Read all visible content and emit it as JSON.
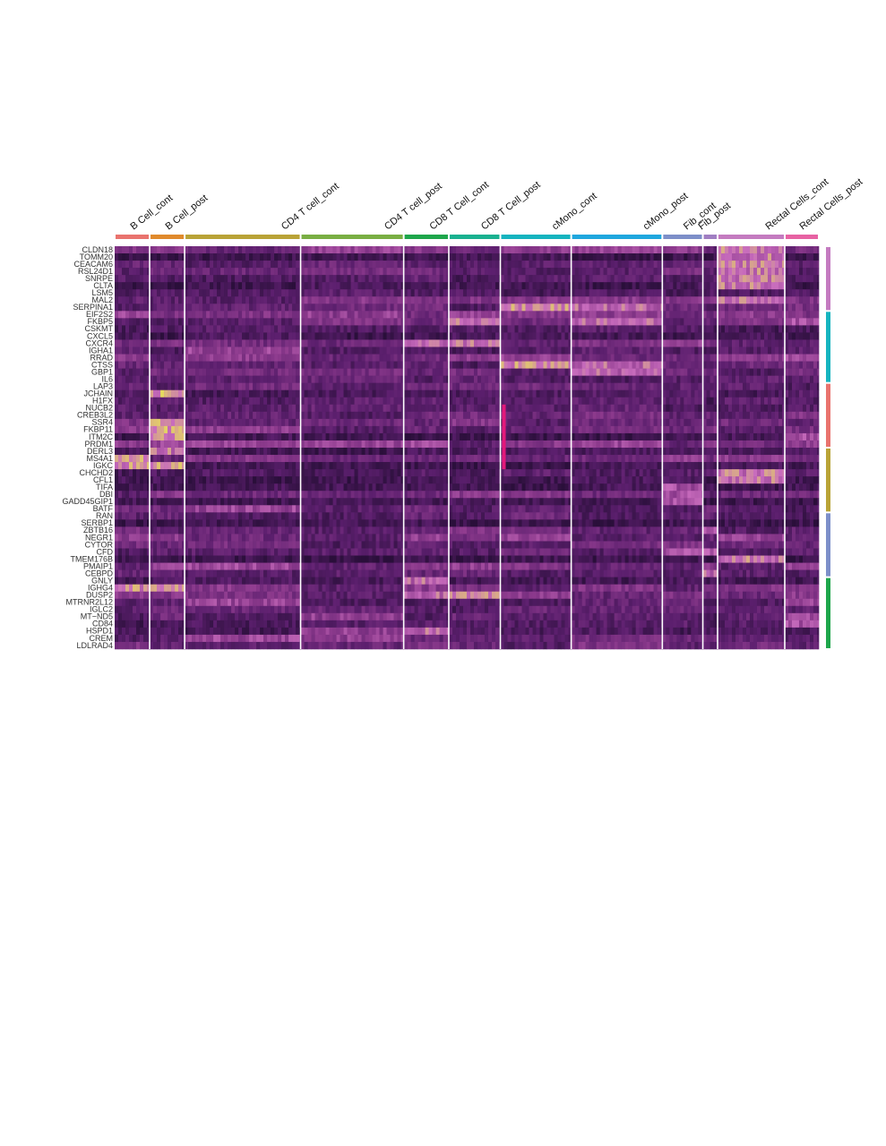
{
  "chart_data": {
    "type": "heatmap",
    "title": "",
    "xlabel": "",
    "ylabel": "",
    "groups": [
      {
        "name": "B Cell_cont",
        "cells": 38,
        "color": "#e9736e"
      },
      {
        "name": "B Cell_post",
        "cells": 38,
        "color": "#e08a2c"
      },
      {
        "name": "CD4 T cell_cont",
        "cells": 126,
        "color": "#b9a337"
      },
      {
        "name": "CD4 T cell_post",
        "cells": 112,
        "color": "#79ae43"
      },
      {
        "name": "CD8 T Cell_cont",
        "cells": 49,
        "color": "#1ea64b"
      },
      {
        "name": "CD8 T Cell_post",
        "cells": 56,
        "color": "#1ab190"
      },
      {
        "name": "cMono_cont",
        "cells": 77,
        "color": "#16b4bf"
      },
      {
        "name": "cMono_post",
        "cells": 99,
        "color": "#1fa7de"
      },
      {
        "name": "Fib_cont",
        "cells": 44,
        "color": "#7d8fc9"
      },
      {
        "name": "Fib_post",
        "cells": 16,
        "color": "#a07ec2"
      },
      {
        "name": "Rectal Cells_cont",
        "cells": 73,
        "color": "#c47bc0"
      },
      {
        "name": "Rectal Cells_post",
        "cells": 37,
        "color": "#e762a3"
      }
    ],
    "genes": [
      "CLDN18",
      "TOMM20",
      "CEACAM6",
      "RSL24D1",
      "SNRPE",
      "CLTA",
      "LSM5",
      "MAL2",
      "SERPINA1",
      "EIF2S2",
      "FKBP5",
      "CSKMT",
      "CXCL5",
      "CXCR4",
      "IGHA1",
      "RRAD",
      "CTSS",
      "GBP1",
      "IL6",
      "LAP3",
      "JCHAIN",
      "H1FX",
      "NUCB2",
      "CREB3L2",
      "SSR4",
      "FKBP11",
      "ITM2C",
      "PRDM1",
      "DERL3",
      "MS4A1",
      "IGKC",
      "CHCHD2",
      "CFL1",
      "TIFA",
      "DBI",
      "GADD45GIP1",
      "BATF",
      "RAN",
      "SERBP1",
      "ZBTB16",
      "NEGR1",
      "CYTOR",
      "CFD",
      "TMEM176B",
      "PMAIP1",
      "CEBPD",
      "GNLY",
      "IGHG4",
      "DUSP2",
      "MTRNR2L12",
      "IGLC2",
      "MT−ND5",
      "CD84",
      "HSPD1",
      "CREM",
      "LDLRAD4"
    ],
    "gene_clusters": [
      {
        "start": 0,
        "end": 8,
        "color": "#c47bc0"
      },
      {
        "start": 9,
        "end": 18,
        "color": "#16b4bf"
      },
      {
        "start": 19,
        "end": 27,
        "color": "#e9736e"
      },
      {
        "start": 28,
        "end": 36,
        "color": "#b9a337"
      },
      {
        "start": 37,
        "end": 45,
        "color": "#7d8fc9"
      },
      {
        "start": 46,
        "end": 55,
        "color": "#1ea64b"
      }
    ],
    "highlights": [
      {
        "group": "B Cell_post",
        "genes": [
          "JCHAIN",
          "SSR4",
          "FKBP11",
          "ITM2C",
          "IGKC",
          "IGHG4"
        ],
        "level": 0.85
      },
      {
        "group": "B Cell_cont",
        "genes": [
          "MS4A1",
          "IGKC",
          "IGHG4"
        ],
        "level": 0.8
      },
      {
        "group": "B Cell_post",
        "genes": [
          "DERL3"
        ],
        "level": 0.75
      },
      {
        "group": "CD8 T Cell_cont",
        "genes": [
          "CXCR4",
          "GNLY",
          "DUSP2",
          "HSPD1"
        ],
        "level": 0.7
      },
      {
        "group": "CD8 T Cell_post",
        "genes": [
          "CXCR4",
          "DUSP2",
          "FKBP5"
        ],
        "level": 0.75
      },
      {
        "group": "cMono_cont",
        "genes": [
          "CTSS",
          "SERPINA1"
        ],
        "level": 0.8
      },
      {
        "group": "cMono_post",
        "genes": [
          "CTSS",
          "GBP1",
          "SERPINA1",
          "FKBP5"
        ],
        "level": 0.7
      },
      {
        "group": "Fib_cont",
        "genes": [
          "CFD",
          "DBI",
          "TIFA",
          "GADD45GIP1"
        ],
        "level": 0.6
      },
      {
        "group": "Fib_post",
        "genes": [
          "CFD",
          "CEBPD",
          "ZBTB16"
        ],
        "level": 0.7
      },
      {
        "group": "Rectal Cells_cont",
        "genes": [
          "CLDN18",
          "TOMM20",
          "CEACAM6",
          "RSL24D1",
          "SNRPE",
          "CLTA",
          "MAL2",
          "CFL1",
          "CHCHD2",
          "TMEM176B"
        ],
        "level": 0.75
      },
      {
        "group": "Rectal Cells_post",
        "genes": [
          "ITM2C",
          "FKBP5",
          "MTRNR2L12",
          "MT−ND5",
          "CD84"
        ],
        "level": 0.6
      },
      {
        "group": "CD4 T cell_cont",
        "genes": [
          "BATF",
          "IGHA1",
          "MTRNR2L12",
          "CREM",
          "PMAIP1"
        ],
        "level": 0.55
      },
      {
        "group": "CD4 T cell_post",
        "genes": [
          "MT−ND5",
          "CREM",
          "HSPD1",
          "EIF2S2"
        ],
        "level": 0.5
      }
    ],
    "color_scale": [
      "#2a0f3a",
      "#5c1f6e",
      "#8e3b8e",
      "#c86cbd",
      "#e8e05a"
    ],
    "annotation_mark": {
      "group": "cMono_cont",
      "gene_start": "NUCB2",
      "gene_end": "IGKC",
      "color": "#e3187a"
    }
  }
}
